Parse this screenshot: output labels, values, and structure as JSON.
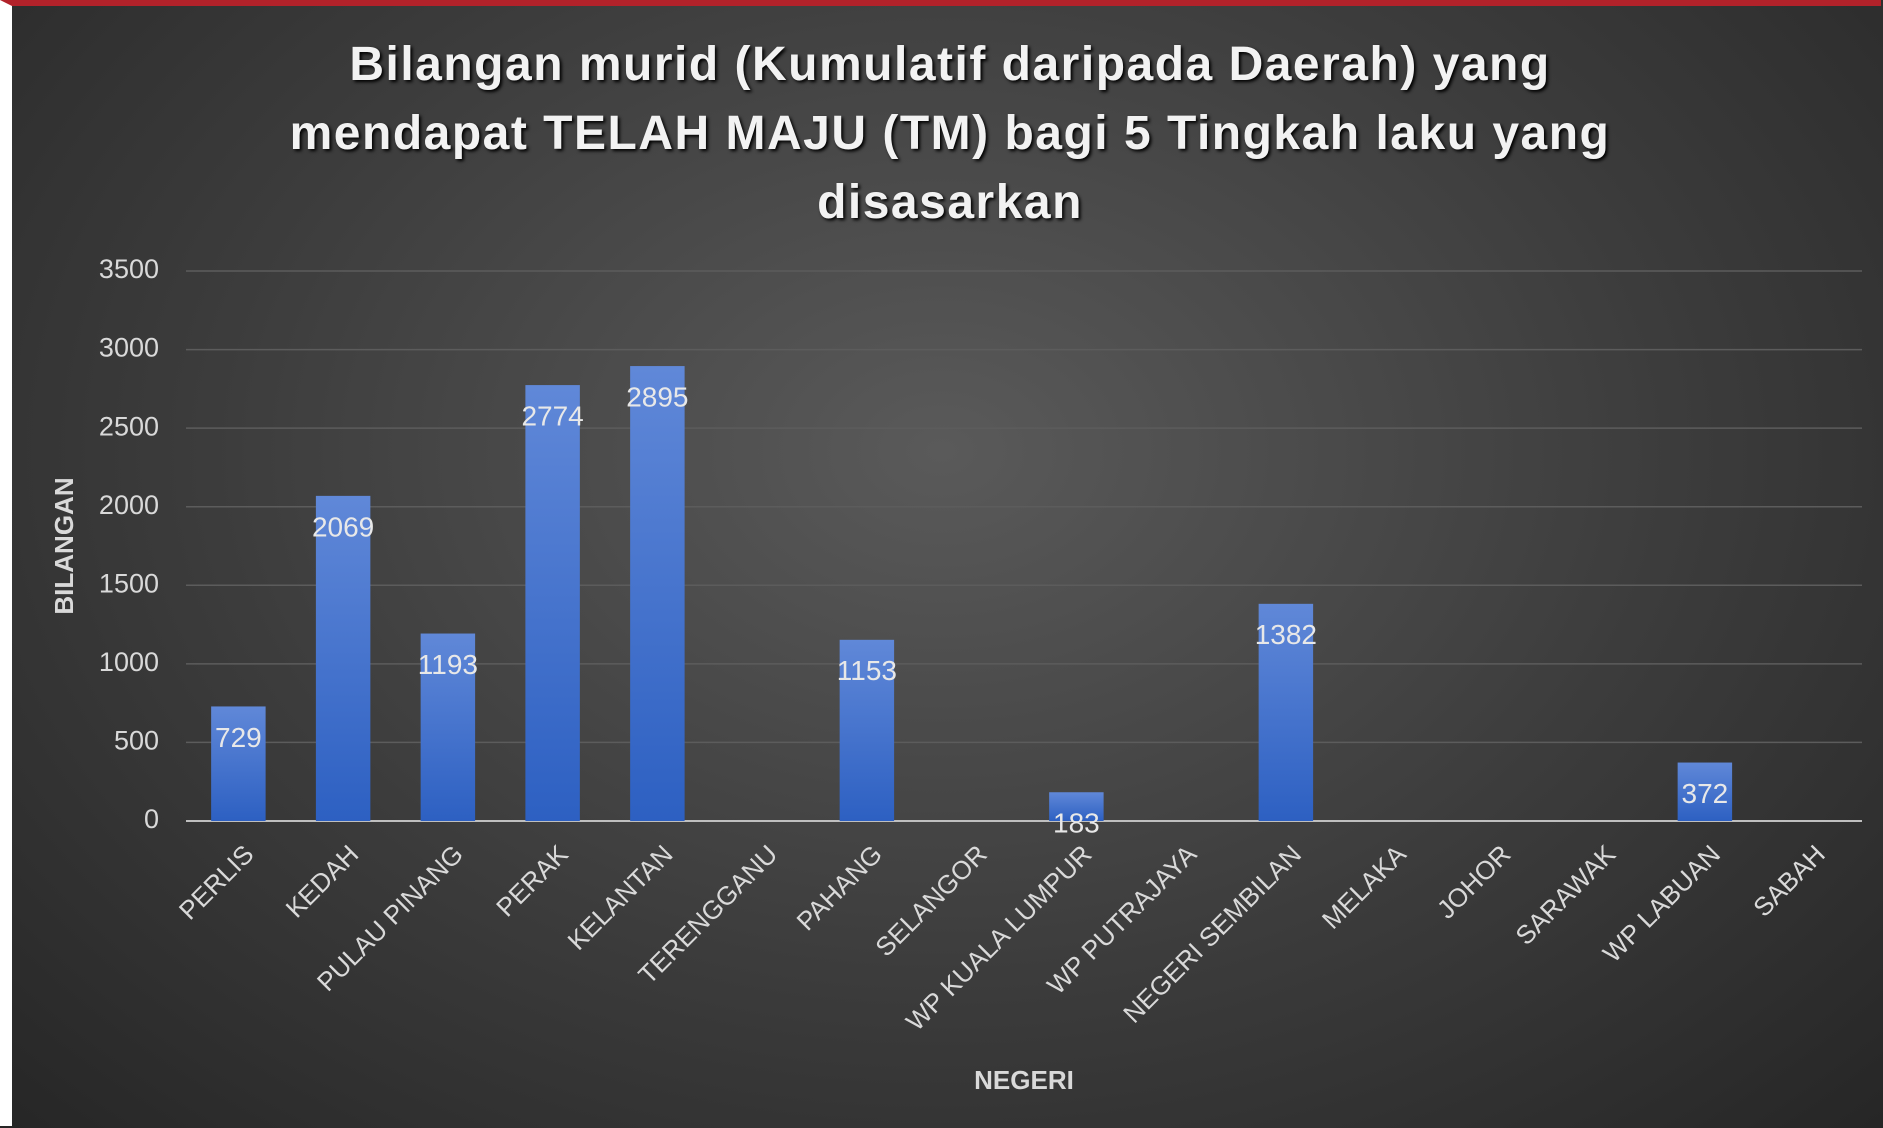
{
  "chart_data": {
    "type": "bar",
    "title": "Bilangan murid (Kumulatif daripada Daerah) yang mendapat TELAH MAJU (TM) bagi 5 Tingkah laku yang disasarkan",
    "x_label": "NEGERI",
    "y_label": "BILANGAN",
    "categories": [
      "PERLIS",
      "KEDAH",
      "PULAU PINANG",
      "PERAK",
      "KELANTAN",
      "TERENGGANU",
      "PAHANG",
      "SELANGOR",
      "WP KUALA LUMPUR",
      "WP PUTRAJAYA",
      "NEGERI SEMBILAN",
      "MELAKA",
      "JOHOR",
      "SARAWAK",
      "WP LABUAN",
      "SABAH"
    ],
    "values": [
      729,
      2069,
      1193,
      2774,
      2895,
      null,
      1153,
      null,
      183,
      null,
      1382,
      null,
      null,
      null,
      372,
      null
    ],
    "color": "#3b6bcb",
    "ylim": [
      0,
      3500
    ],
    "yticks": [
      0,
      500,
      1000,
      1500,
      2000,
      2500,
      3000,
      3500
    ],
    "grid": true
  }
}
